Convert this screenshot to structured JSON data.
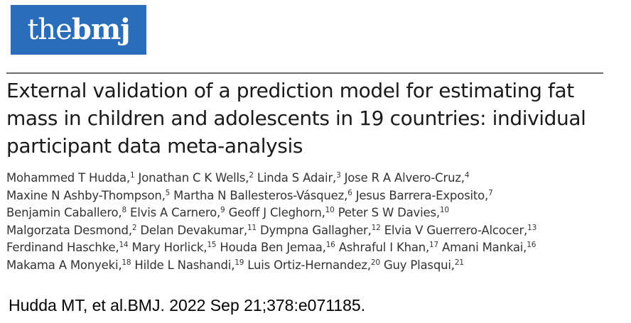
{
  "logo": {
    "part_light": "the",
    "part_bold": "bmj"
  },
  "article": {
    "title": "External validation of a prediction model for estimating fat mass in children and adolescents in 19 countries: individual participant data meta-analysis",
    "author_lines": [
      [
        {
          "name": "Mohammed T Hudda,",
          "sup": "1"
        },
        {
          "name": "Jonathan C K Wells,",
          "sup": "2"
        },
        {
          "name": "Linda S Adair,",
          "sup": "3"
        },
        {
          "name": "Jose R A Alvero-Cruz,",
          "sup": "4"
        }
      ],
      [
        {
          "name": "Maxine N Ashby-Thompson,",
          "sup": "5"
        },
        {
          "name": "Martha N Ballesteros-Vásquez,",
          "sup": "6"
        },
        {
          "name": "Jesus Barrera-Exposito,",
          "sup": "7"
        }
      ],
      [
        {
          "name": "Benjamin Caballero,",
          "sup": "8"
        },
        {
          "name": "Elvis A Carnero,",
          "sup": "9"
        },
        {
          "name": "Geoff J Cleghorn,",
          "sup": "10"
        },
        {
          "name": "Peter S W Davies,",
          "sup": "10"
        }
      ],
      [
        {
          "name": "Malgorzata Desmond,",
          "sup": "2"
        },
        {
          "name": "Delan Devakumar,",
          "sup": "11"
        },
        {
          "name": "Dympna Gallagher,",
          "sup": "12"
        },
        {
          "name": "Elvia V Guerrero-Alcocer,",
          "sup": "13"
        }
      ],
      [
        {
          "name": "Ferdinand Haschke,",
          "sup": "14"
        },
        {
          "name": "Mary Horlick,",
          "sup": "15"
        },
        {
          "name": "Houda Ben Jemaa,",
          "sup": "16"
        },
        {
          "name": "Ashraful I Khan,",
          "sup": "17"
        },
        {
          "name": "Amani Mankai,",
          "sup": "16"
        }
      ],
      [
        {
          "name": "Makama A Monyeki,",
          "sup": "18"
        },
        {
          "name": "Hilde L Nashandi,",
          "sup": "19"
        },
        {
          "name": "Luis Ortiz-Hernandez,",
          "sup": "20"
        },
        {
          "name": "Guy Plasqui,",
          "sup": "21"
        }
      ]
    ]
  },
  "citation": "Hudda MT, et al.BMJ. 2022 Sep 21;378:e071185."
}
